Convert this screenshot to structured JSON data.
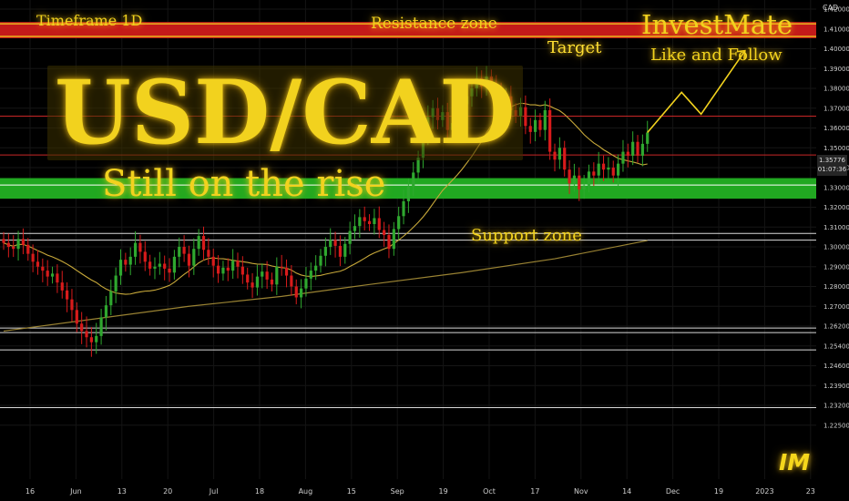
{
  "annotations": {
    "timeframe": "Timeframe 1D",
    "resistance_zone": "Resistance zone",
    "target": "Target",
    "brand": "InvestMate",
    "brand_tagline": "Like and Follow",
    "pair": "USD/CAD",
    "subtitle": "Still on the rise",
    "support_zone": "Support zone",
    "logo": "IM"
  },
  "price_axis": {
    "unit": "CAD",
    "last_price": "1.35776",
    "countdown": "01:07:36"
  },
  "colors": {
    "background": "#000000",
    "up_candle": "#2fa82f",
    "down_candle": "#d81b1b",
    "resistance_zone": "#c41a1a",
    "support_zone": "#21a821",
    "ma_line": "#c8a93a",
    "annotation": "#f2d21e",
    "hline": "#d9d9d9",
    "red_line": "#c82626"
  },
  "chart_data": {
    "type": "candlestick",
    "y_ticks": [
      "1.42000",
      "1.41000",
      "1.40000",
      "1.39000",
      "1.38000",
      "1.37000",
      "1.36000",
      "1.35000",
      "1.34000",
      "1.33000",
      "1.32000",
      "1.31000",
      "1.30000",
      "1.29000",
      "1.28000",
      "1.27000",
      "1.26200",
      "1.25400",
      "1.24600",
      "1.23900",
      "1.23200",
      "1.22500"
    ],
    "x_ticks": [
      "16",
      "Jun",
      "13",
      "20",
      "Jul",
      "18",
      "Aug",
      "15",
      "Sep",
      "19",
      "Oct",
      "17",
      "Nov",
      "14",
      "Dec",
      "19",
      "2023",
      "23"
    ],
    "closes": [
      1.302,
      1.3,
      1.299,
      1.304,
      1.301,
      1.2965,
      1.2925,
      1.29,
      1.288,
      1.285,
      1.2865,
      1.282,
      1.278,
      1.2735,
      1.2685,
      1.263,
      1.26,
      1.2575,
      1.2555,
      1.258,
      1.2655,
      1.2705,
      1.2775,
      1.2855,
      1.2935,
      1.291,
      1.295,
      1.302,
      1.2975,
      1.2925,
      1.289,
      1.29,
      1.2915,
      1.289,
      1.287,
      1.295,
      1.3,
      1.2965,
      1.2905,
      1.299,
      1.3055,
      1.2985,
      1.295,
      1.2905,
      1.2865,
      1.2895,
      1.288,
      1.293,
      1.29,
      1.286,
      1.282,
      1.2795,
      1.285,
      1.2875,
      1.2835,
      1.281,
      1.29,
      1.2895,
      1.2855,
      1.28,
      1.2745,
      1.279,
      1.284,
      1.288,
      1.2905,
      1.2955,
      1.3,
      1.3035,
      1.3005,
      1.295,
      1.3015,
      1.308,
      1.3105,
      1.315,
      1.313,
      1.3115,
      1.3145,
      1.3085,
      1.306,
      1.299,
      1.309,
      1.3155,
      1.323,
      1.3305,
      1.3375,
      1.345,
      1.3555,
      1.3655,
      1.37,
      1.364,
      1.368,
      1.359,
      1.3625,
      1.3675,
      1.372,
      1.376,
      1.38,
      1.385,
      1.381,
      1.386,
      1.382,
      1.377,
      1.373,
      1.376,
      1.369,
      1.366,
      1.3705,
      1.361,
      1.358,
      1.364,
      1.359,
      1.369,
      1.348,
      1.344,
      1.35,
      1.339,
      1.332,
      1.336,
      1.329,
      1.331,
      1.338,
      1.336,
      1.342,
      1.339,
      1.34,
      1.336,
      1.342,
      1.348,
      1.346,
      1.353,
      1.346,
      1.352,
      1.3577
    ],
    "extra_bars_right": 29,
    "levels": {
      "resistance_zone": [
        1.4053,
        1.4135
      ],
      "support_zone": [
        1.3243,
        1.3347
      ],
      "red_lines": [
        1.366,
        1.3464,
        1.3312
      ],
      "white_lines": [
        1.3068,
        1.3034,
        1.2612,
        1.2594,
        1.2524,
        1.2312
      ]
    },
    "ma_long": [
      1.26,
      1.265,
      1.27,
      1.275,
      1.281,
      1.287,
      1.294,
      1.3032
    ],
    "ma_short_period": 50,
    "projection": [
      [
        1.3577,
        0
      ],
      [
        1.378,
        7
      ],
      [
        1.367,
        11
      ],
      [
        1.399,
        20
      ]
    ]
  }
}
